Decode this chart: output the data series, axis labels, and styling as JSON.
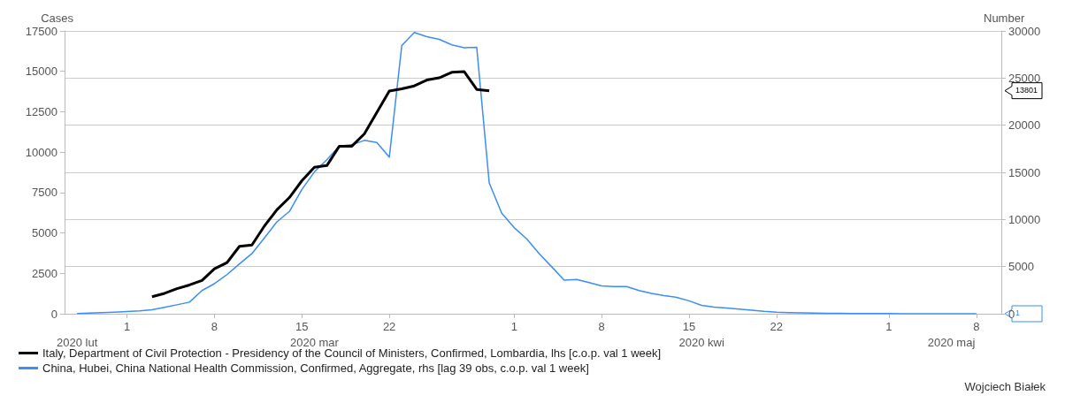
{
  "chart_data": {
    "type": "line",
    "ylabel": "Cases",
    "y2label": "Number",
    "xlim": [
      "2020-02-25",
      "2020-05-10"
    ],
    "xticks": [
      {
        "value": "2020-03-01",
        "label": "1"
      },
      {
        "value": "2020-03-08",
        "label": "8"
      },
      {
        "value": "2020-03-15",
        "label": "15"
      },
      {
        "value": "2020-03-22",
        "label": "22"
      },
      {
        "value": "2020-04-01",
        "label": "1"
      },
      {
        "value": "2020-04-08",
        "label": "8"
      },
      {
        "value": "2020-04-15",
        "label": "15"
      },
      {
        "value": "2020-04-22",
        "label": "22"
      },
      {
        "value": "2020-05-01",
        "label": "1"
      },
      {
        "value": "2020-05-08",
        "label": "8"
      }
    ],
    "x2lim": [
      "2020-02-25",
      "2020-05-10"
    ],
    "x2ticks": [
      {
        "value": "2020-02-26",
        "label": "2020 lut"
      },
      {
        "value": "2020-03-16",
        "label": "2020 mar"
      },
      {
        "value": "2020-04-16",
        "label": "2020 kwi"
      },
      {
        "value": "2020-05-06",
        "label": "2020 maj"
      }
    ],
    "ylim": [
      0,
      17500
    ],
    "yticks": [
      0,
      2500,
      5000,
      7500,
      10000,
      12500,
      15000,
      17500
    ],
    "y2lim": [
      0,
      30000
    ],
    "y2ticks": [
      0,
      5000,
      10000,
      15000,
      20000,
      25000,
      30000
    ],
    "grid": "y",
    "legend": "bottom",
    "series": [
      {
        "name": "Italy, Department of Civil Protection - Presidency of the Council of Ministers, Confirmed, Lombardia, lhs [c.o.p. val 1 week]",
        "color": "#000000",
        "x": [
          "2020-03-03",
          "2020-03-04",
          "2020-03-05",
          "2020-03-06",
          "2020-03-07",
          "2020-03-08",
          "2020-03-09",
          "2020-03-10",
          "2020-03-11",
          "2020-03-12",
          "2020-03-13",
          "2020-03-14",
          "2020-03-15",
          "2020-03-16",
          "2020-03-17",
          "2020-03-18",
          "2020-03-19",
          "2020-03-20",
          "2020-03-21",
          "2020-03-22",
          "2020-03-23",
          "2020-03-24",
          "2020-03-25",
          "2020-03-26",
          "2020-03-27",
          "2020-03-28",
          "2020-03-29",
          "2020-03-30"
        ],
        "values": [
          1050,
          1260,
          1550,
          1780,
          2060,
          2780,
          3160,
          4170,
          4250,
          5430,
          6430,
          7190,
          8230,
          9070,
          9170,
          10370,
          10370,
          11130,
          12450,
          13780,
          13920,
          14100,
          14460,
          14600,
          14940,
          14980,
          13880,
          13801
        ]
      },
      {
        "name": "China, Hubei, China National Health Commission, Confirmed, Aggregate, rhs [lag 39 obs, c.o.p. val 1 week]",
        "color": "#3a8ef6",
        "axis": "y2",
        "x": [
          "2020-02-26",
          "2020-02-27",
          "2020-02-28",
          "2020-02-29",
          "2020-03-01",
          "2020-03-02",
          "2020-03-03",
          "2020-03-04",
          "2020-03-05",
          "2020-03-06",
          "2020-03-07",
          "2020-03-08",
          "2020-03-09",
          "2020-03-10",
          "2020-03-11",
          "2020-03-12",
          "2020-03-13",
          "2020-03-14",
          "2020-03-15",
          "2020-03-16",
          "2020-03-17",
          "2020-03-18",
          "2020-03-19",
          "2020-03-20",
          "2020-03-21",
          "2020-03-22",
          "2020-03-23",
          "2020-03-24",
          "2020-03-25",
          "2020-03-26",
          "2020-03-27",
          "2020-03-28",
          "2020-03-29",
          "2020-03-30",
          "2020-03-31",
          "2020-04-01",
          "2020-04-02",
          "2020-04-03",
          "2020-04-04",
          "2020-04-05",
          "2020-04-06",
          "2020-04-07",
          "2020-04-08",
          "2020-04-09",
          "2020-04-10",
          "2020-04-11",
          "2020-04-12",
          "2020-04-13",
          "2020-04-14",
          "2020-04-15",
          "2020-04-16",
          "2020-04-17",
          "2020-04-18",
          "2020-04-19",
          "2020-04-20",
          "2020-04-21",
          "2020-04-22",
          "2020-04-23",
          "2020-04-24",
          "2020-04-25",
          "2020-04-26",
          "2020-04-27",
          "2020-04-28",
          "2020-04-29",
          "2020-04-30",
          "2020-05-01",
          "2020-05-02",
          "2020-05-03",
          "2020-05-04",
          "2020-05-05",
          "2020-05-06",
          "2020-05-07",
          "2020-05-08"
        ],
        "values": [
          20,
          60,
          110,
          170,
          240,
          300,
          420,
          680,
          950,
          1230,
          2460,
          3190,
          4150,
          5290,
          6380,
          8040,
          9750,
          10850,
          13180,
          15040,
          16340,
          17790,
          17920,
          18390,
          18160,
          16610,
          28460,
          29840,
          29390,
          29110,
          28530,
          28220,
          28260,
          13870,
          10670,
          9130,
          7950,
          6380,
          4980,
          3570,
          3630,
          3300,
          2950,
          2880,
          2880,
          2460,
          2160,
          1920,
          1740,
          1370,
          890,
          710,
          600,
          500,
          380,
          260,
          170,
          120,
          90,
          70,
          50,
          40,
          30,
          25,
          20,
          15,
          10,
          8,
          5,
          4,
          3,
          2,
          1
        ]
      }
    ],
    "annotations": [
      "13801",
      "1",
      "Wojciech Białek"
    ]
  }
}
